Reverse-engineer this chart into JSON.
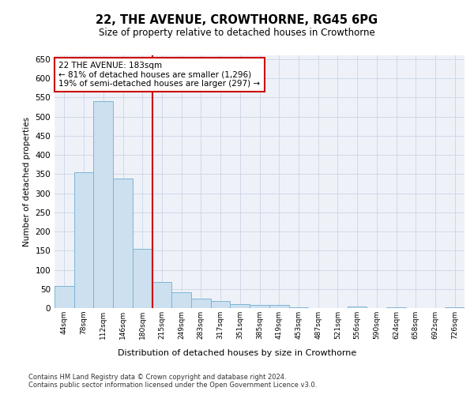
{
  "title1": "22, THE AVENUE, CROWTHORNE, RG45 6PG",
  "title2": "Size of property relative to detached houses in Crowthorne",
  "xlabel": "Distribution of detached houses by size in Crowthorne",
  "ylabel": "Number of detached properties",
  "bar_labels": [
    "44sqm",
    "78sqm",
    "112sqm",
    "146sqm",
    "180sqm",
    "215sqm",
    "249sqm",
    "283sqm",
    "317sqm",
    "351sqm",
    "385sqm",
    "419sqm",
    "453sqm",
    "487sqm",
    "521sqm",
    "556sqm",
    "590sqm",
    "624sqm",
    "658sqm",
    "692sqm",
    "726sqm"
  ],
  "bar_values": [
    57,
    355,
    540,
    338,
    155,
    68,
    42,
    24,
    18,
    11,
    8,
    8,
    2,
    0,
    0,
    4,
    0,
    3,
    0,
    0,
    3
  ],
  "bar_color": "#cce0f0",
  "bar_edge_color": "#7fb4d4",
  "vline_x": 4.5,
  "vline_color": "#cc0000",
  "annotation_text": "22 THE AVENUE: 183sqm\n← 81% of detached houses are smaller (1,296)\n19% of semi-detached houses are larger (297) →",
  "annotation_box_color": "#ffffff",
  "annotation_box_edge": "#cc0000",
  "ylim": [
    0,
    660
  ],
  "yticks": [
    0,
    50,
    100,
    150,
    200,
    250,
    300,
    350,
    400,
    450,
    500,
    550,
    600,
    650
  ],
  "grid_color": "#d0d8e8",
  "background_color": "#eef2f8",
  "footnote": "Contains HM Land Registry data © Crown copyright and database right 2024.\nContains public sector information licensed under the Open Government Licence v3.0.",
  "fig_bg": "#ffffff"
}
